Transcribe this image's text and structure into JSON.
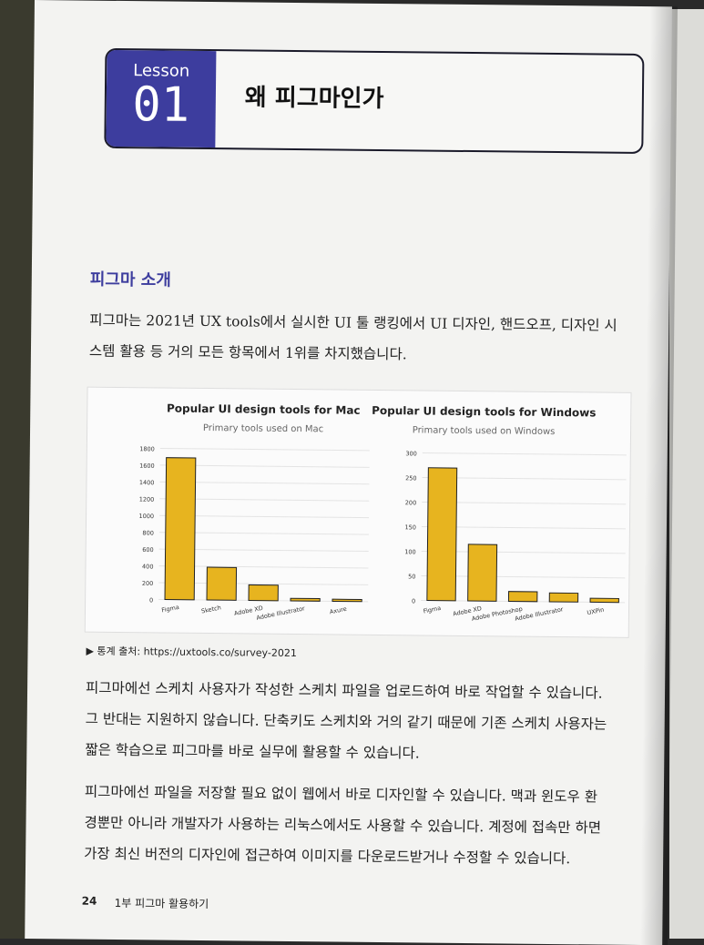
{
  "header": {
    "lesson_word": "Lesson",
    "lesson_number": "01",
    "title": "왜 피그마인가"
  },
  "section": {
    "title": "피그마 소개"
  },
  "intro": {
    "line1": "피그마는 2021년 UX tools에서 실시한 UI 툴 랭킹에서 UI 디자인, 핸드오프, 디자인 시",
    "line2": "스템 활용 등 거의 모든 항목에서 1위를 차지했습니다."
  },
  "source": "▶ 통계 출처: https://uxtools.co/survey-2021",
  "para2": {
    "line1": "피그마에선 스케치 사용자가 작성한 스케치 파일을 업로드하여 바로 작업할 수 있습니다.",
    "line2": "그 반대는 지원하지 않습니다. 단축키도 스케치와 거의 같기 때문에 기존 스케치 사용자는",
    "line3": "짧은 학습으로 피그마를 바로 실무에 활용할 수 있습니다."
  },
  "para3": {
    "line1": "피그마에선 파일을 저장할 필요 없이 웹에서 바로 디자인할 수 있습니다. 맥과 윈도우 환",
    "line2": "경뿐만 아니라 개발자가 사용하는 리눅스에서도 사용할 수 있습니다. 계정에 접속만 하면",
    "line3": "가장 최신 버전의 디자인에 접근하여 이미지를 다운로드받거나 수정할 수 있습니다."
  },
  "footer": {
    "page_number": "24",
    "part": "1부 피그마 활용하기"
  },
  "colors": {
    "accent": "#3d3d9e",
    "bar": "#e7b41f"
  },
  "chart_data": [
    {
      "type": "bar",
      "title": "Popular UI design tools for Mac",
      "subtitle": "Primary tools used on Mac",
      "categories": [
        "Figma",
        "Sketch",
        "Adobe XD",
        "Adobe Illustrator",
        "Axure"
      ],
      "values": [
        1690,
        390,
        185,
        30,
        25
      ],
      "ylim": [
        0,
        1800
      ],
      "yticks": [
        0,
        200,
        400,
        600,
        800,
        1000,
        1200,
        1400,
        1600,
        1800
      ]
    },
    {
      "type": "bar",
      "title": "Popular UI design tools for Windows",
      "subtitle": "Primary tools used on Windows",
      "categories": [
        "Figma",
        "Adobe XD",
        "Adobe Photoshop",
        "Adobe Illustrator",
        "UXPin"
      ],
      "values": [
        270,
        115,
        20,
        18,
        8
      ],
      "ylim": [
        0,
        300
      ],
      "yticks": [
        0,
        50,
        100,
        150,
        200,
        250,
        300
      ]
    }
  ]
}
